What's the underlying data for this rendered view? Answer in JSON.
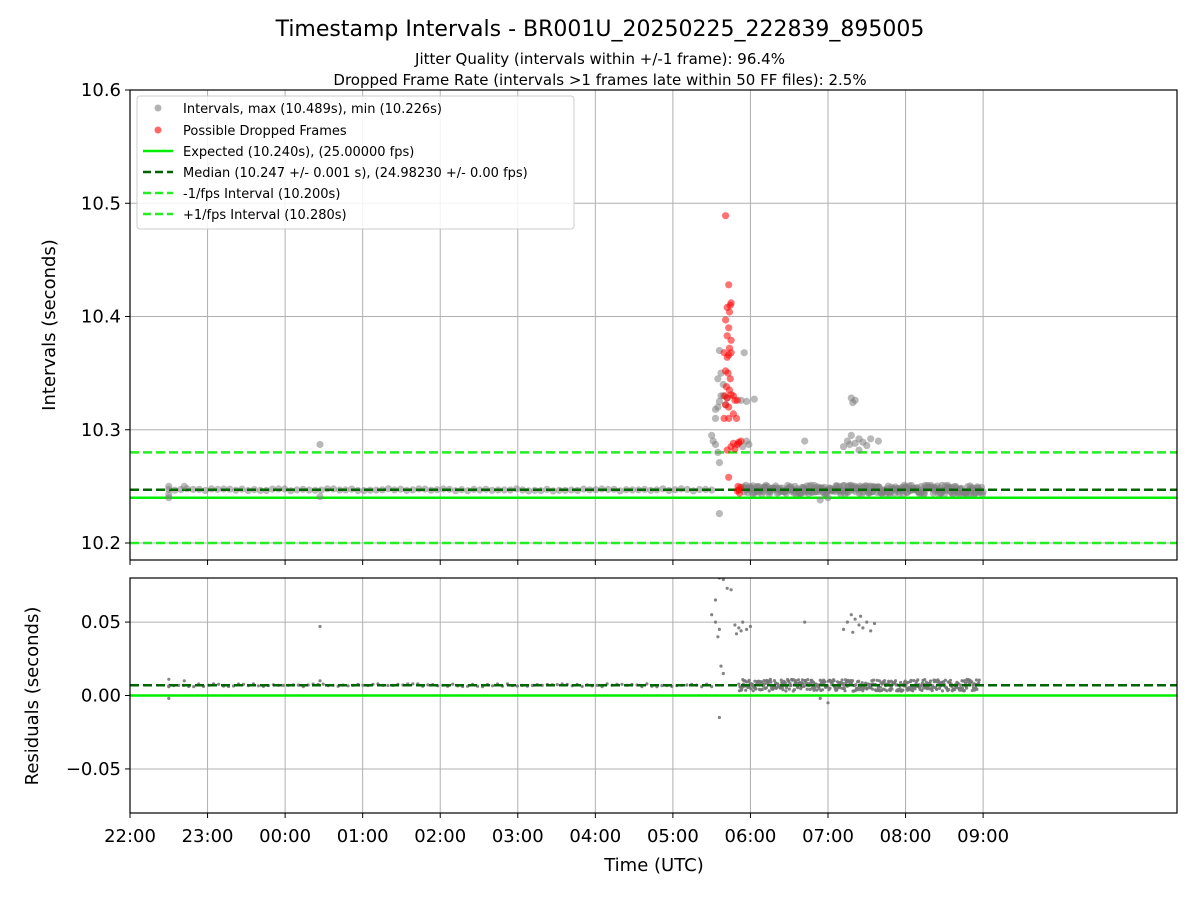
{
  "chart_data": [
    {
      "panel": "top",
      "type": "scatter",
      "title": "Timestamp Intervals - BR001U_20250225_222839_895005",
      "subtitle_lines": [
        "Jitter Quality (intervals within +/-1 frame): 96.4%",
        "Dropped Frame Rate (intervals >1 frames late within 50 FF files): 2.5%"
      ],
      "xlabel": "Time (UTC)",
      "ylabel": "Intervals (seconds)",
      "xlim_hours": [
        -2.0,
        11.5
      ],
      "ylim": [
        10.185,
        10.6
      ],
      "yticks": [
        10.2,
        10.3,
        10.4,
        10.5,
        10.6
      ],
      "ytick_labels": [
        "10.2",
        "10.3",
        "10.4",
        "10.5",
        "10.6"
      ],
      "xticks_hours": [
        -2,
        -1,
        0,
        1,
        2,
        3,
        4,
        5,
        6,
        7,
        8,
        9
      ],
      "xtick_labels": [
        "22:00",
        "23:00",
        "00:00",
        "01:00",
        "02:00",
        "03:00",
        "04:00",
        "05:00",
        "06:00",
        "07:00",
        "08:00",
        "09:00"
      ],
      "grid": true,
      "legend_position": "upper-left",
      "legend": [
        {
          "label": "Intervals, max (10.489s), min (10.226s)",
          "kind": "marker",
          "color": "#808080"
        },
        {
          "label": "Possible Dropped Frames",
          "kind": "marker",
          "color": "#ff0000"
        },
        {
          "label": "Expected (10.240s), (25.00000 fps)",
          "kind": "solid",
          "color": "#00ee00"
        },
        {
          "label": "Median (10.247 +/- 0.001 s), (24.98230 +/- 0.00 fps)",
          "kind": "dashed",
          "color": "#006400"
        },
        {
          "label": "-1/fps Interval (10.200s)",
          "kind": "dashed",
          "color": "#22ee22"
        },
        {
          "label": "+1/fps Interval (10.280s)",
          "kind": "dashed",
          "color": "#22ee22"
        }
      ],
      "reference_lines": [
        {
          "name": "expected",
          "y": 10.24,
          "style": "solid",
          "color": "#00ee00"
        },
        {
          "name": "median",
          "y": 10.247,
          "style": "dashed",
          "color": "#006400"
        },
        {
          "name": "minus_one_frame",
          "y": 10.2,
          "style": "dashed",
          "color": "#22ee22"
        },
        {
          "name": "plus_one_frame",
          "y": 10.28,
          "style": "dashed",
          "color": "#22ee22"
        }
      ],
      "series": [
        {
          "name": "Intervals",
          "color": "#808080",
          "bands": [
            {
              "x_start": -1.5,
              "x_end": 5.5,
              "y": 10.247,
              "jitter": 0.001,
              "count": 90
            },
            {
              "x_start": 5.9,
              "x_end": 9.0,
              "y": 10.247,
              "jitter": 0.004,
              "count": 300
            }
          ],
          "points": [
            [
              -1.5,
              10.25
            ],
            [
              -1.5,
              10.243
            ],
            [
              -1.5,
              10.24
            ],
            [
              -1.3,
              10.25
            ],
            [
              0.45,
              10.287
            ],
            [
              0.45,
              10.241
            ],
            [
              5.5,
              10.295
            ],
            [
              5.52,
              10.29
            ],
            [
              5.55,
              10.287
            ],
            [
              5.58,
              10.28
            ],
            [
              5.6,
              10.271
            ],
            [
              5.6,
              10.226
            ],
            [
              5.55,
              10.31
            ],
            [
              5.58,
              10.32
            ],
            [
              5.6,
              10.325
            ],
            [
              5.62,
              10.33
            ],
            [
              5.65,
              10.34
            ],
            [
              5.58,
              10.345
            ],
            [
              5.6,
              10.37
            ],
            [
              5.62,
              10.35
            ],
            [
              5.65,
              10.33
            ],
            [
              5.55,
              10.318
            ],
            [
              5.68,
              10.322
            ],
            [
              5.7,
              10.328
            ],
            [
              5.92,
              10.368
            ],
            [
              5.88,
              10.326
            ],
            [
              5.95,
              10.325
            ],
            [
              6.05,
              10.327
            ],
            [
              5.95,
              10.29
            ],
            [
              5.9,
              10.285
            ],
            [
              5.85,
              10.288
            ],
            [
              5.98,
              10.287
            ],
            [
              6.7,
              10.29
            ],
            [
              7.3,
              10.328
            ],
            [
              7.32,
              10.324
            ],
            [
              7.35,
              10.326
            ],
            [
              7.2,
              10.285
            ],
            [
              7.25,
              10.29
            ],
            [
              7.3,
              10.295
            ],
            [
              7.35,
              10.288
            ],
            [
              7.4,
              10.292
            ],
            [
              7.45,
              10.289
            ],
            [
              7.5,
              10.286
            ],
            [
              7.55,
              10.292
            ],
            [
              7.65,
              10.29
            ],
            [
              7.4,
              10.282
            ],
            [
              7.28,
              10.287
            ],
            [
              6.9,
              10.238
            ],
            [
              7.0,
              10.24
            ]
          ]
        },
        {
          "name": "Possible Dropped Frames",
          "color": "#ff0000",
          "points": [
            [
              5.68,
              10.489
            ],
            [
              5.72,
              10.428
            ],
            [
              5.74,
              10.41
            ],
            [
              5.7,
              10.408
            ],
            [
              5.75,
              10.412
            ],
            [
              5.73,
              10.404
            ],
            [
              5.68,
              10.397
            ],
            [
              5.72,
              10.39
            ],
            [
              5.7,
              10.383
            ],
            [
              5.75,
              10.379
            ],
            [
              5.73,
              10.372
            ],
            [
              5.66,
              10.368
            ],
            [
              5.7,
              10.364
            ],
            [
              5.72,
              10.366
            ],
            [
              5.75,
              10.368
            ],
            [
              5.68,
              10.352
            ],
            [
              5.71,
              10.35
            ],
            [
              5.74,
              10.345
            ],
            [
              5.69,
              10.338
            ],
            [
              5.73,
              10.335
            ],
            [
              5.67,
              10.33
            ],
            [
              5.7,
              10.328
            ],
            [
              5.75,
              10.331
            ],
            [
              5.78,
              10.33
            ],
            [
              5.8,
              10.326
            ],
            [
              5.83,
              10.326
            ],
            [
              5.68,
              10.322
            ],
            [
              5.72,
              10.32
            ],
            [
              5.66,
              10.31
            ],
            [
              5.72,
              10.31
            ],
            [
              5.78,
              10.314
            ],
            [
              5.82,
              10.31
            ],
            [
              5.72,
              10.258
            ],
            [
              5.7,
              10.282
            ],
            [
              5.75,
              10.285
            ],
            [
              5.78,
              10.288
            ],
            [
              5.8,
              10.283
            ],
            [
              5.83,
              10.287
            ],
            [
              5.85,
              10.289
            ],
            [
              5.88,
              10.29
            ],
            [
              5.84,
              10.25
            ],
            [
              5.85,
              10.247
            ],
            [
              5.86,
              10.244
            ],
            [
              5.83,
              10.246
            ],
            [
              5.87,
              10.249
            ]
          ]
        }
      ]
    },
    {
      "panel": "bottom",
      "type": "scatter",
      "xlabel": "Time (UTC)",
      "ylabel": "Residuals (seconds)",
      "xlim_hours": [
        -2.0,
        11.5
      ],
      "ylim": [
        -0.08,
        0.08
      ],
      "yticks": [
        -0.05,
        0.0,
        0.05
      ],
      "ytick_labels": [
        "−0.05",
        "0.00",
        "0.05"
      ],
      "xticks_hours": [
        -2,
        -1,
        0,
        1,
        2,
        3,
        4,
        5,
        6,
        7,
        8,
        9
      ],
      "xtick_labels": [
        "22:00",
        "23:00",
        "00:00",
        "01:00",
        "02:00",
        "03:00",
        "04:00",
        "05:00",
        "06:00",
        "07:00",
        "08:00",
        "09:00"
      ],
      "grid": true,
      "reference_lines": [
        {
          "name": "zero",
          "y": 0.0,
          "style": "solid",
          "color": "#00ee00"
        },
        {
          "name": "median_residual",
          "y": 0.007,
          "style": "dashed",
          "color": "#006400"
        }
      ],
      "series": [
        {
          "name": "Residuals",
          "color": "#777777",
          "bands": [
            {
              "x_start": -1.5,
              "x_end": 5.5,
              "y": 0.007,
              "jitter": 0.001,
              "count": 110
            },
            {
              "x_start": 5.85,
              "x_end": 8.95,
              "y": 0.007,
              "jitter": 0.004,
              "count": 420
            }
          ],
          "points": [
            [
              -1.5,
              0.011
            ],
            [
              -1.5,
              0.006
            ],
            [
              -1.5,
              -0.002
            ],
            [
              -1.3,
              0.01
            ],
            [
              0.45,
              0.047
            ],
            [
              0.45,
              0.01
            ],
            [
              5.5,
              0.055
            ],
            [
              5.55,
              0.05
            ],
            [
              5.6,
              0.045
            ],
            [
              5.58,
              0.04
            ],
            [
              5.6,
              -0.015
            ],
            [
              5.62,
              0.02
            ],
            [
              5.65,
              0.015
            ],
            [
              5.6,
              0.08
            ],
            [
              5.65,
              0.079
            ],
            [
              5.7,
              0.073
            ],
            [
              5.75,
              0.072
            ],
            [
              5.55,
              0.065
            ],
            [
              5.8,
              0.048
            ],
            [
              5.85,
              0.046
            ],
            [
              5.9,
              0.05
            ],
            [
              5.95,
              0.045
            ],
            [
              6.0,
              0.047
            ],
            [
              5.82,
              0.042
            ],
            [
              5.88,
              0.044
            ],
            [
              6.7,
              0.05
            ],
            [
              7.2,
              0.045
            ],
            [
              7.25,
              0.05
            ],
            [
              7.3,
              0.055
            ],
            [
              7.35,
              0.052
            ],
            [
              7.4,
              0.048
            ],
            [
              7.45,
              0.046
            ],
            [
              7.5,
              0.05
            ],
            [
              7.55,
              0.044
            ],
            [
              7.6,
              0.049
            ],
            [
              7.32,
              0.043
            ],
            [
              7.42,
              0.054
            ],
            [
              7.0,
              -0.005
            ],
            [
              6.9,
              -0.002
            ]
          ]
        }
      ]
    }
  ]
}
